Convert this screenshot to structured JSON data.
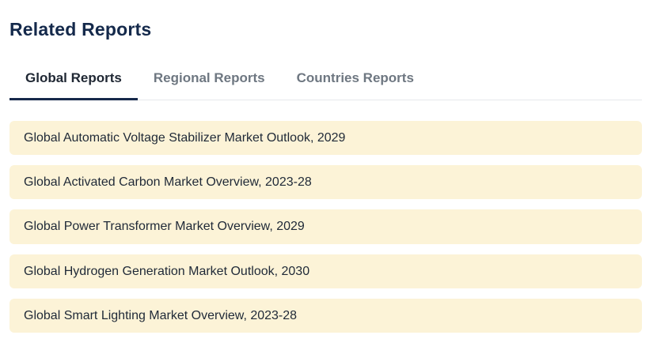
{
  "page": {
    "title": "Related Reports"
  },
  "tabs": {
    "items": [
      {
        "label": "Global Reports",
        "active": true
      },
      {
        "label": "Regional Reports",
        "active": false
      },
      {
        "label": "Countries Reports",
        "active": false
      }
    ]
  },
  "reports": {
    "items": [
      "Global Automatic Voltage Stabilizer Market Outlook, 2029",
      "Global Activated Carbon Market Overview, 2023-28",
      "Global Power Transformer Market Overview, 2029",
      "Global Hydrogen Generation Market Outlook, 2030",
      "Global Smart Lighting Market Overview, 2023-28"
    ]
  },
  "colors": {
    "heading": "#14294b",
    "tab_active_text": "#1f2733",
    "tab_active_underline": "#16284a",
    "tab_inactive_text": "#6e7781",
    "item_background": "#fcf3d7",
    "item_text": "#1f2937"
  }
}
